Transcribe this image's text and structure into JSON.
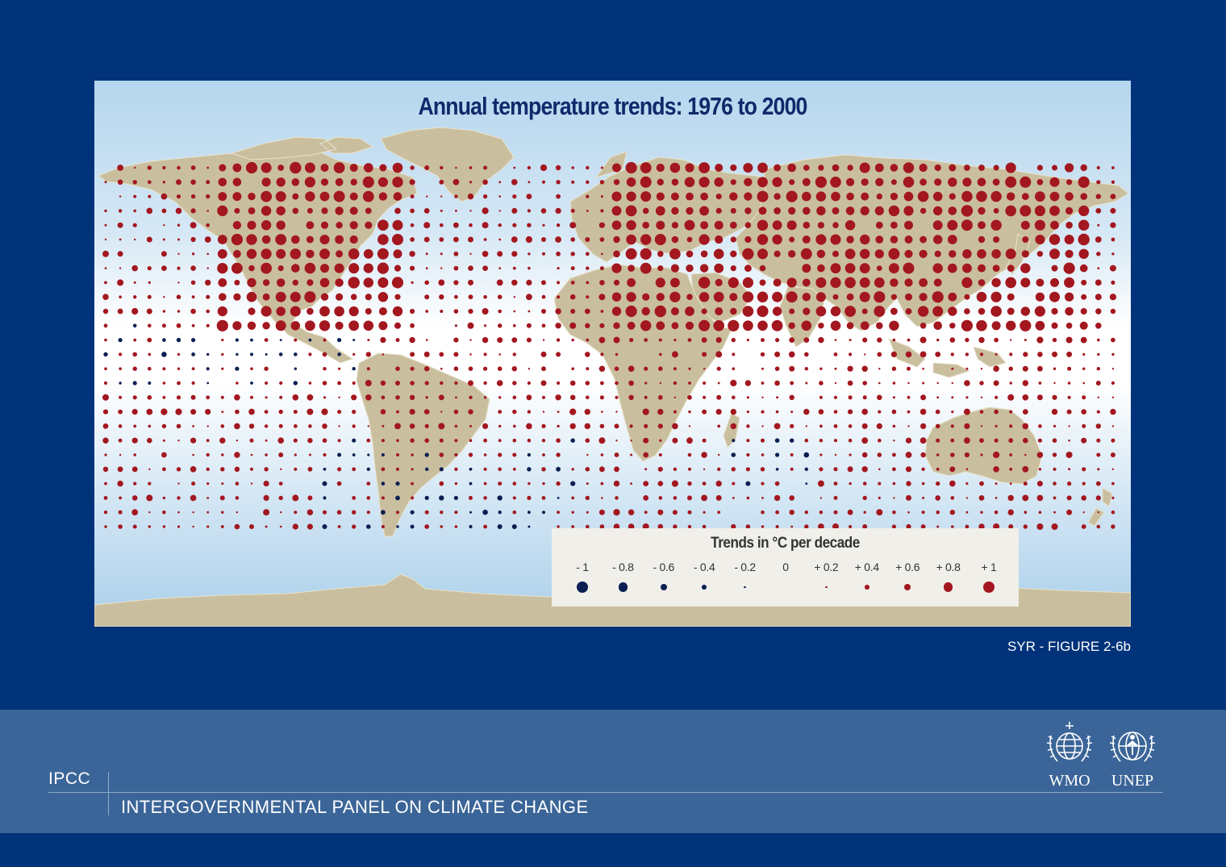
{
  "map": {
    "title": "Annual temperature trends:  1976 to 2000",
    "ocean_color": "#d6e8f5",
    "land_color": "#c9bf9f",
    "warming_color": "#a3171f",
    "cooling_color": "#0b1f52"
  },
  "legend": {
    "title": "Trends in °C per decade",
    "items": [
      {
        "label": "- 1",
        "value": -1
      },
      {
        "label": "- 0.8",
        "value": -0.8
      },
      {
        "label": "- 0.6",
        "value": -0.6
      },
      {
        "label": "- 0.4",
        "value": -0.4
      },
      {
        "label": "- 0.2",
        "value": -0.2
      },
      {
        "label": "0",
        "value": 0
      },
      {
        "label": "+ 0.2",
        "value": 0.2
      },
      {
        "label": "+ 0.4",
        "value": 0.4
      },
      {
        "label": "+ 0.6",
        "value": 0.6
      },
      {
        "label": "+ 0.8",
        "value": 0.8
      },
      {
        "label": "+ 1",
        "value": 1
      }
    ]
  },
  "figure_ref": "SYR - FIGURE 2-6b",
  "footer": {
    "acronym": "IPCC",
    "org_name": "INTERGOVERNMENTAL PANEL ON CLIMATE CHANGE",
    "logos": [
      {
        "label": "WMO",
        "icon": "wmo-emblem-icon"
      },
      {
        "label": "UNEP",
        "icon": "unep-emblem-icon"
      }
    ]
  }
}
